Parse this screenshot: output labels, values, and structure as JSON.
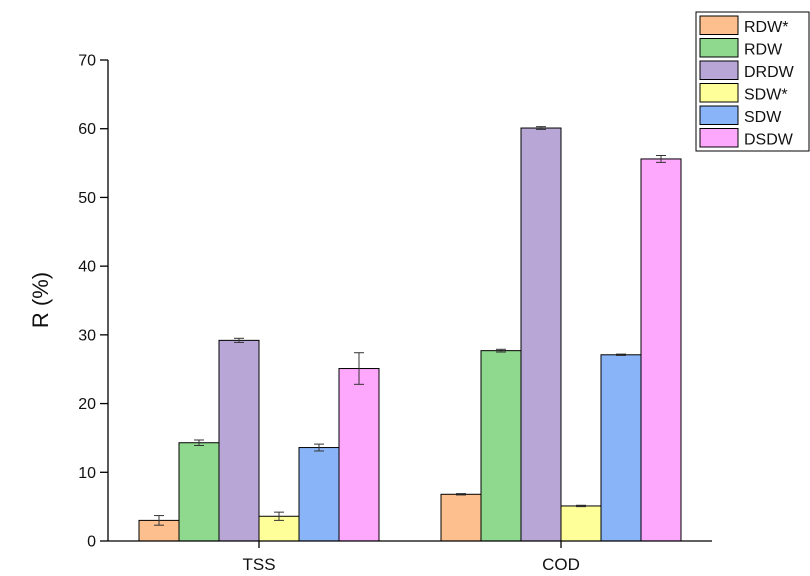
{
  "chart_data": {
    "type": "bar",
    "title": "",
    "xlabel": "",
    "ylabel": "R (%)",
    "ylim": [
      0,
      70
    ],
    "yticks": [
      0,
      10,
      20,
      30,
      40,
      50,
      60,
      70
    ],
    "grid": false,
    "legend_position": "top-right",
    "categories": [
      "TSS",
      "COD"
    ],
    "series": [
      {
        "name": "RDW*",
        "color": "#FDBF8E",
        "values": [
          3.0,
          6.8
        ],
        "errors": [
          0.7,
          0.1
        ]
      },
      {
        "name": "RDW",
        "color": "#8FD98F",
        "values": [
          14.3,
          27.7
        ],
        "errors": [
          0.4,
          0.2
        ]
      },
      {
        "name": "DRDW",
        "color": "#B8A7D6",
        "values": [
          29.2,
          60.1
        ],
        "errors": [
          0.3,
          0.2
        ]
      },
      {
        "name": "SDW*",
        "color": "#FFFF99",
        "values": [
          3.6,
          5.1
        ],
        "errors": [
          0.6,
          0.1
        ]
      },
      {
        "name": "SDW",
        "color": "#8AB4F8",
        "values": [
          13.6,
          27.1
        ],
        "errors": [
          0.5,
          0.1
        ]
      },
      {
        "name": "DSDW",
        "color": "#FDA7FD",
        "values": [
          25.1,
          55.6
        ],
        "errors": [
          2.3,
          0.5
        ]
      }
    ]
  }
}
